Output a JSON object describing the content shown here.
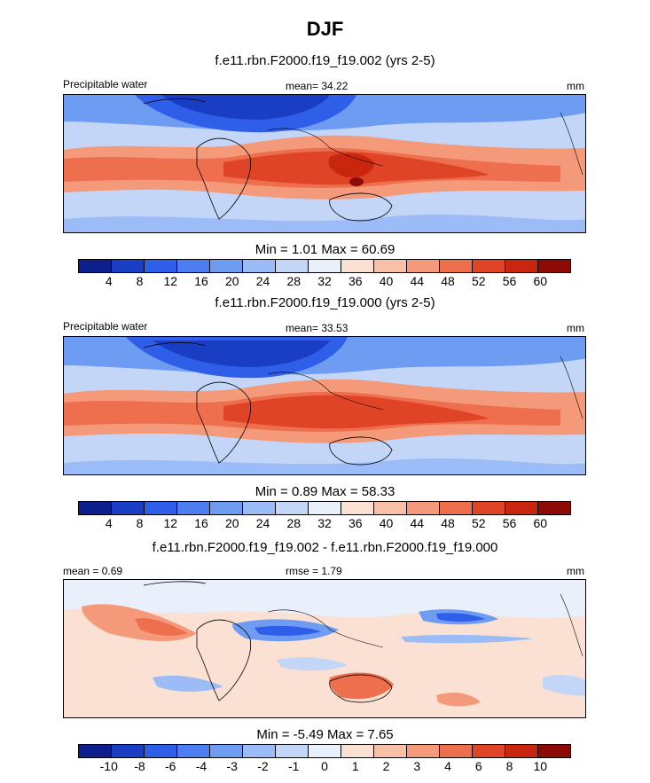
{
  "title": "DJF",
  "colors": {
    "sequential": [
      "#0c1f8a",
      "#1a3ec3",
      "#2f5ee8",
      "#4c7ef2",
      "#6f9cf3",
      "#9bbcf6",
      "#c3d6f7",
      "#eaf0fb",
      "#fbe1d4",
      "#f8c0a6",
      "#f4997a",
      "#ee6f4d",
      "#e04426",
      "#c8260f",
      "#8d0b06"
    ],
    "diverging": [
      "#0c1f8a",
      "#1a3ec3",
      "#2f5ee8",
      "#4c7ef2",
      "#6f9cf3",
      "#9bbcf6",
      "#c3d6f7",
      "#eaf0fb",
      "#fbe1d4",
      "#f8c0a6",
      "#f4997a",
      "#ee6f4d",
      "#e04426",
      "#c8260f",
      "#8d0b06"
    ]
  },
  "panels": [
    {
      "subtitle": "f.e11.rbn.F2000.f19_f19.002 (yrs 2-5)",
      "left_label": "Precipitable water",
      "center_label": "mean=  34.22",
      "right_label": "mm",
      "stats": "Min =   1.01 Max =  60.69",
      "colorbar_labels": [
        "4",
        "8",
        "12",
        "16",
        "20",
        "24",
        "28",
        "32",
        "36",
        "40",
        "44",
        "48",
        "52",
        "56",
        "60"
      ],
      "field": "sequential"
    },
    {
      "subtitle": "f.e11.rbn.F2000.f19_f19.000 (yrs 2-5)",
      "left_label": "Precipitable water",
      "center_label": "mean=  33.53",
      "right_label": "mm",
      "stats": "Min =   0.89 Max =  58.33",
      "colorbar_labels": [
        "4",
        "8",
        "12",
        "16",
        "20",
        "24",
        "28",
        "32",
        "36",
        "40",
        "44",
        "48",
        "52",
        "56",
        "60"
      ],
      "field": "sequential"
    },
    {
      "subtitle": "f.e11.rbn.F2000.f19_f19.002 - f.e11.rbn.F2000.f19_f19.000",
      "left_label": "mean =   0.69",
      "center_label": "rmse =   1.79",
      "right_label": "mm",
      "stats": "Min =  -5.49 Max =   7.65",
      "colorbar_labels": [
        "-10",
        "-8",
        "-6",
        "-4",
        "-3",
        "-2",
        "-1",
        "0",
        "1",
        "2",
        "3",
        "4",
        "6",
        "8",
        "10"
      ],
      "field": "diverging"
    }
  ]
}
